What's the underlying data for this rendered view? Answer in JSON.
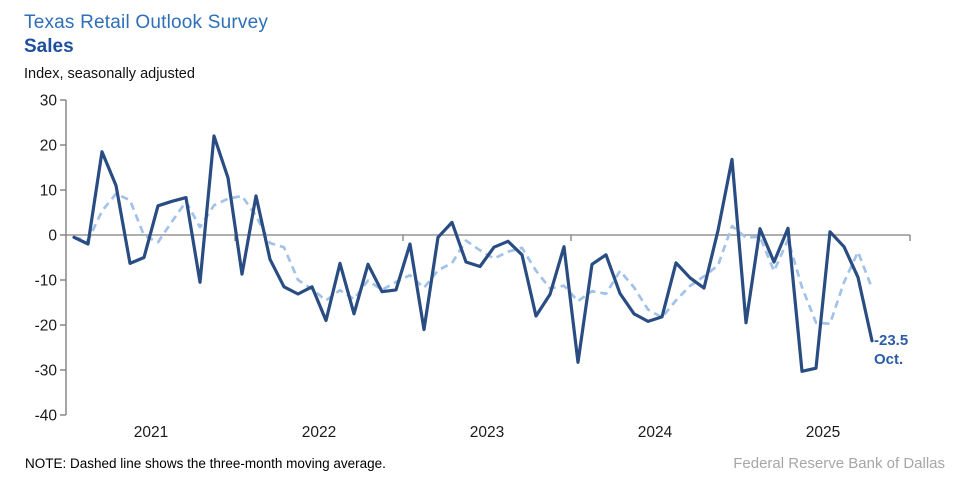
{
  "header": {
    "title": "Texas Retail Outlook Survey",
    "subtitle": "Sales",
    "units_label": "Index, seasonally adjusted"
  },
  "footer": {
    "note": "NOTE: Dashed line shows the three-month moving average.",
    "org": "Federal Reserve Bank of Dallas"
  },
  "colors": {
    "title_blue": "#2E6FB7",
    "subtitle_blue": "#1E4F9E",
    "line_navy": "#294D82",
    "moving_avg_blue": "#A3C2E8",
    "annotation_blue": "#2B5CA9",
    "axis_gray": "#7F7F7F",
    "text_dark": "#1A1A1A",
    "org_gray": "#A6A6A6"
  },
  "chart_data": {
    "type": "line",
    "title": "Texas Retail Outlook Survey — Sales",
    "ylabel": "Index, seasonally adjusted",
    "ylim": [
      -40,
      30
    ],
    "ytick_step": 10,
    "x_range": "Jan 2021 - Oct 2025, monthly",
    "year_labels": [
      "2021",
      "2022",
      "2023",
      "2024",
      "2025"
    ],
    "legend_note": "Dashed line shows the three-month moving average.",
    "series": [
      {
        "name": "Sales index, monthly (seasonally adjusted)",
        "style": "solid",
        "start_month": "2021-01",
        "values": [
          -0.5,
          -2,
          18.5,
          11,
          -6.3,
          -5,
          6.5,
          7.5,
          8.3,
          -10.5,
          22,
          12.7,
          -8.7,
          8.7,
          -5.4,
          -11.5,
          -13.1,
          -11.5,
          -19,
          -6.3,
          -17.5,
          -6.5,
          -12.6,
          -12.2,
          -2,
          -21,
          -0.5,
          2.8,
          -6,
          -7,
          -2.7,
          -1.4,
          -4.4,
          -18,
          -13.2,
          -2.6,
          -28.3,
          -6.5,
          -4.4,
          -13,
          -17.5,
          -19.2,
          -18.2,
          -6.2,
          -9.5,
          -11.8,
          1,
          16.8,
          -19.5,
          1.4,
          -6,
          1.5,
          -30.3,
          -29.6,
          0.7,
          -2.6,
          -9.4,
          -23.5
        ]
      },
      {
        "name": "Three-month moving average",
        "style": "dashed",
        "derived_from": "trailing 3-month average of the monthly series"
      }
    ],
    "last_point": {
      "value": -23.5,
      "value_label": "-23.5",
      "month_label": "Oct."
    }
  }
}
